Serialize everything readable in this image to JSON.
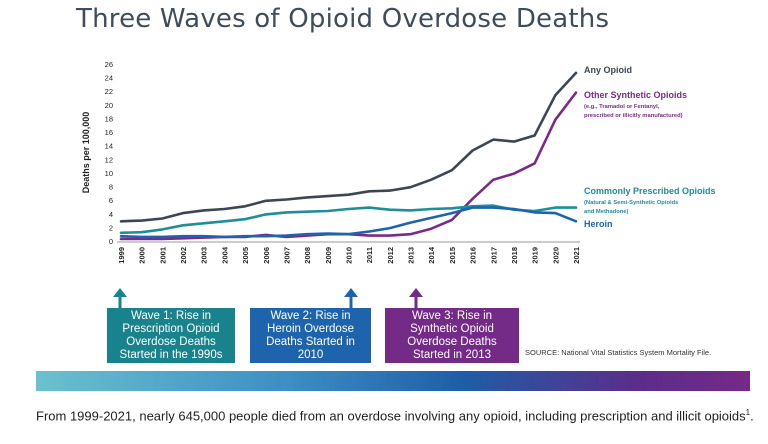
{
  "title": "Three Waves of Opioid Overdose Deaths",
  "chart_data": {
    "type": "line",
    "ylabel": "Deaths per 100,000",
    "xlabel": "",
    "ylim": [
      0,
      26
    ],
    "yticks": [
      0,
      2,
      4,
      6,
      8,
      10,
      12,
      14,
      16,
      18,
      20,
      22,
      24,
      26
    ],
    "x": [
      "1999",
      "2000",
      "2001",
      "2002",
      "2003",
      "2004",
      "2005",
      "2006",
      "2007",
      "2008",
      "2009",
      "2010",
      "2011",
      "2012",
      "2013",
      "2014",
      "2015",
      "2016",
      "2017",
      "2018",
      "2019",
      "2020",
      "2021"
    ],
    "grid": false,
    "series": [
      {
        "name": "Any Opioid",
        "color": "#3d4652",
        "values": [
          2.9,
          3.0,
          3.3,
          4.1,
          4.5,
          4.7,
          5.1,
          5.9,
          6.1,
          6.4,
          6.6,
          6.8,
          7.3,
          7.4,
          7.9,
          9.0,
          10.4,
          13.3,
          14.9,
          14.6,
          15.5,
          21.4,
          24.7
        ]
      },
      {
        "name": "Other Synthetic Opioids",
        "subtitle": "(e.g., Tramadol or Fentanyl, prescribed or illicitly manufactured)",
        "subtitle_lines": [
          "(e.g., Tramadol or Fentanyl,",
          "prescribed or illicitly manufactured)"
        ],
        "color": "#7b2a88",
        "values": [
          0.3,
          0.3,
          0.3,
          0.4,
          0.5,
          0.6,
          0.6,
          0.9,
          0.6,
          0.8,
          1.0,
          1.0,
          0.8,
          0.8,
          1.0,
          1.8,
          3.1,
          6.2,
          9.0,
          9.9,
          11.4,
          17.8,
          21.8
        ]
      },
      {
        "name": "Commonly Prescribed Opioids",
        "subtitle": "(Natural & Semi-Synthetic Opioids and Methadone)",
        "subtitle_lines": [
          "(Natural & Semi-Synthetic Opioids",
          "and Methadone)"
        ],
        "color": "#1e8e98",
        "values": [
          1.2,
          1.3,
          1.7,
          2.3,
          2.6,
          2.9,
          3.2,
          3.9,
          4.2,
          4.3,
          4.4,
          4.7,
          4.9,
          4.6,
          4.5,
          4.7,
          4.8,
          5.1,
          5.2,
          4.6,
          4.4,
          4.9,
          4.9
        ]
      },
      {
        "name": "Heroin",
        "color": "#1d64ad",
        "values": [
          0.7,
          0.6,
          0.6,
          0.7,
          0.7,
          0.6,
          0.7,
          0.7,
          0.8,
          1.0,
          1.1,
          1.0,
          1.4,
          1.9,
          2.7,
          3.4,
          4.1,
          4.9,
          4.9,
          4.7,
          4.2,
          4.1,
          2.9
        ]
      }
    ]
  },
  "waves": [
    {
      "label": "Wave 1: Rise in Prescription Opioid Overdose Deaths Started in the 1990s",
      "color": "#19838d"
    },
    {
      "label": "Wave 2: Rise in Heroin Overdose Deaths Started in 2010",
      "color": "#1d64ad"
    },
    {
      "label": "Wave 3: Rise in Synthetic Opioid Overdose Deaths Started in 2013",
      "color": "#742a87"
    }
  ],
  "source": "SOURCE: National Vital Statistics System Mortality File.",
  "footer": {
    "text": "From 1999-2021, nearly 645,000 people died from an overdose involving any opioid, including prescription and illicit opioids",
    "superscript": "1",
    "end": "."
  }
}
